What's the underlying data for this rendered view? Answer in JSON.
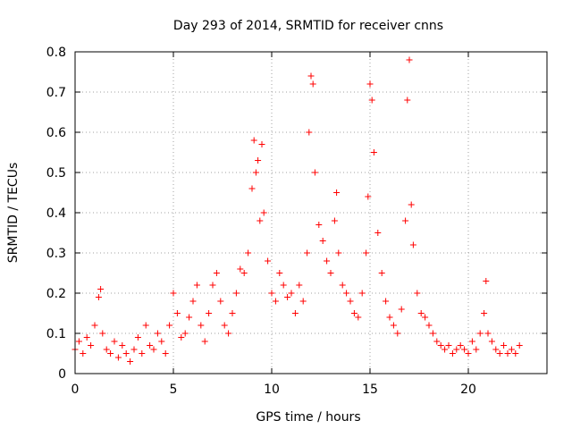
{
  "chart_data": {
    "type": "scatter",
    "title": "Day 293 of 2014, SRMTID for receiver cnns",
    "xlabel": "GPS time / hours",
    "ylabel": "SRMTID / TECUs",
    "xlim": [
      0,
      24
    ],
    "ylim": [
      0,
      0.8
    ],
    "xticks": [
      0,
      5,
      10,
      15,
      20
    ],
    "xtick_labels": [
      "0",
      "5",
      "10",
      "15",
      "20"
    ],
    "yticks": [
      0,
      0.1,
      0.2,
      0.3,
      0.4,
      0.5,
      0.6,
      0.7,
      0.8
    ],
    "ytick_labels": [
      "0",
      "0.1",
      "0.2",
      "0.3",
      "0.4",
      "0.5",
      "0.6",
      "0.7",
      "0.8"
    ],
    "grid": true,
    "marker": "+",
    "marker_color": "#ff0000",
    "series": [
      {
        "name": "SRMTID",
        "x": [
          0.0,
          0.2,
          0.4,
          0.6,
          0.8,
          1.0,
          1.2,
          1.3,
          1.4,
          1.6,
          1.8,
          2.0,
          2.2,
          2.4,
          2.6,
          2.8,
          3.0,
          3.2,
          3.4,
          3.6,
          3.8,
          4.0,
          4.2,
          4.4,
          4.6,
          4.8,
          5.0,
          5.2,
          5.4,
          5.6,
          5.8,
          6.0,
          6.2,
          6.4,
          6.6,
          6.8,
          7.0,
          7.2,
          7.4,
          7.6,
          7.8,
          8.0,
          8.2,
          8.4,
          8.6,
          8.8,
          9.0,
          9.1,
          9.2,
          9.3,
          9.4,
          9.5,
          9.6,
          9.8,
          10.0,
          10.2,
          10.4,
          10.6,
          10.8,
          11.0,
          11.2,
          11.4,
          11.6,
          11.8,
          11.9,
          12.0,
          12.1,
          12.2,
          12.4,
          12.6,
          12.8,
          13.0,
          13.2,
          13.3,
          13.4,
          13.6,
          13.8,
          14.0,
          14.2,
          14.4,
          14.6,
          14.8,
          14.9,
          15.0,
          15.1,
          15.2,
          15.4,
          15.6,
          15.8,
          16.0,
          16.2,
          16.4,
          16.6,
          16.8,
          16.9,
          17.0,
          17.1,
          17.2,
          17.4,
          17.6,
          17.8,
          18.0,
          18.2,
          18.4,
          18.6,
          18.8,
          19.0,
          19.2,
          19.4,
          19.6,
          19.8,
          20.0,
          20.2,
          20.4,
          20.6,
          20.8,
          20.9,
          21.0,
          21.2,
          21.4,
          21.6,
          21.8,
          22.0,
          22.2,
          22.4,
          22.6
        ],
        "y": [
          0.06,
          0.08,
          0.05,
          0.09,
          0.07,
          0.12,
          0.19,
          0.21,
          0.1,
          0.06,
          0.05,
          0.08,
          0.04,
          0.07,
          0.05,
          0.03,
          0.06,
          0.09,
          0.05,
          0.12,
          0.07,
          0.06,
          0.1,
          0.08,
          0.05,
          0.12,
          0.2,
          0.15,
          0.09,
          0.1,
          0.14,
          0.18,
          0.22,
          0.12,
          0.08,
          0.15,
          0.22,
          0.25,
          0.18,
          0.12,
          0.1,
          0.15,
          0.2,
          0.26,
          0.25,
          0.3,
          0.46,
          0.58,
          0.5,
          0.53,
          0.38,
          0.57,
          0.4,
          0.28,
          0.2,
          0.18,
          0.25,
          0.22,
          0.19,
          0.2,
          0.15,
          0.22,
          0.18,
          0.3,
          0.6,
          0.74,
          0.72,
          0.5,
          0.37,
          0.33,
          0.28,
          0.25,
          0.38,
          0.45,
          0.3,
          0.22,
          0.2,
          0.18,
          0.15,
          0.14,
          0.2,
          0.3,
          0.44,
          0.72,
          0.68,
          0.55,
          0.35,
          0.25,
          0.18,
          0.14,
          0.12,
          0.1,
          0.16,
          0.38,
          0.68,
          0.78,
          0.42,
          0.32,
          0.2,
          0.15,
          0.14,
          0.12,
          0.1,
          0.08,
          0.07,
          0.06,
          0.07,
          0.05,
          0.06,
          0.07,
          0.06,
          0.05,
          0.08,
          0.06,
          0.1,
          0.15,
          0.23,
          0.1,
          0.08,
          0.06,
          0.05,
          0.07,
          0.05,
          0.06,
          0.05,
          0.07
        ]
      }
    ]
  }
}
